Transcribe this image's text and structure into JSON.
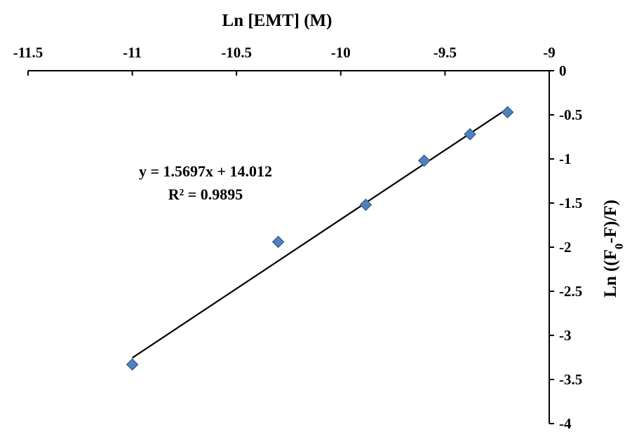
{
  "chart_data": {
    "type": "scatter",
    "xlabel": "Ln [EMT] (M)",
    "ylabel_parts": [
      "Ln ((F",
      "0",
      "-F)/F)"
    ],
    "xlim": [
      -11.5,
      -9
    ],
    "ylim": [
      -4,
      0
    ],
    "x_ticks": [
      -11.5,
      -11,
      -10.5,
      -10,
      -9.5,
      -9
    ],
    "x_tick_labels": [
      "-11.5",
      "-11",
      "-10.5",
      "-10",
      "-9.5",
      "-9"
    ],
    "y_ticks": [
      0,
      -0.5,
      -1,
      -1.5,
      -2,
      -2.5,
      -3,
      -3.5,
      -4
    ],
    "y_tick_labels": [
      "0",
      "-0.5",
      "-1",
      "-1.5",
      "-2",
      "-2.5",
      "-3",
      "-3.5",
      "-4"
    ],
    "x_axis_position": "top",
    "y_axis_position": "right",
    "grid": false,
    "legend": "none",
    "series": [
      {
        "points": [
          {
            "x": -11.0,
            "y": -3.33
          },
          {
            "x": -10.3,
            "y": -1.94
          },
          {
            "x": -9.88,
            "y": -1.52
          },
          {
            "x": -9.6,
            "y": -1.02
          },
          {
            "x": -9.38,
            "y": -0.72
          },
          {
            "x": -9.2,
            "y": -0.47
          }
        ],
        "marker": "diamond",
        "color": "#4f81bd",
        "edge_color": "#385d8a"
      }
    ],
    "trendline": {
      "type": "linear",
      "slope": 1.5697,
      "intercept": 14.012,
      "x_range": [
        -11.0,
        -9.2
      ],
      "color": "#000000"
    },
    "annotations": {
      "equation": "y = 1.5697x + 14.012",
      "r_squared": "R² = 0.9895"
    }
  }
}
